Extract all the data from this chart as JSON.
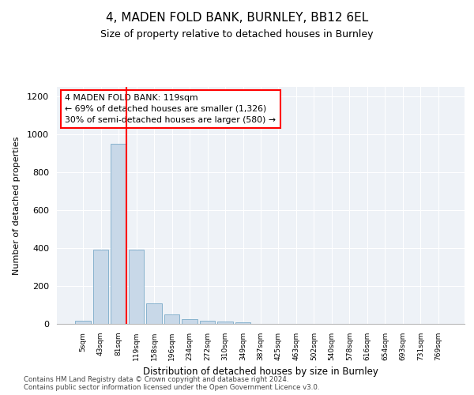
{
  "title": "4, MADEN FOLD BANK, BURNLEY, BB12 6EL",
  "subtitle": "Size of property relative to detached houses in Burnley",
  "xlabel": "Distribution of detached houses by size in Burnley",
  "ylabel": "Number of detached properties",
  "categories": [
    "5sqm",
    "43sqm",
    "81sqm",
    "119sqm",
    "158sqm",
    "196sqm",
    "234sqm",
    "272sqm",
    "310sqm",
    "349sqm",
    "387sqm",
    "425sqm",
    "463sqm",
    "502sqm",
    "540sqm",
    "578sqm",
    "616sqm",
    "654sqm",
    "693sqm",
    "731sqm",
    "769sqm"
  ],
  "values": [
    15,
    393,
    950,
    390,
    110,
    52,
    27,
    15,
    14,
    10,
    0,
    0,
    0,
    0,
    0,
    0,
    0,
    0,
    0,
    0,
    0
  ],
  "bar_color": "#c8d8e8",
  "bar_edge_color": "#7aaac8",
  "red_line_index": 2,
  "annotation_text": "4 MADEN FOLD BANK: 119sqm\n← 69% of detached houses are smaller (1,326)\n30% of semi-detached houses are larger (580) →",
  "annotation_box_color": "white",
  "annotation_box_edge": "red",
  "ylim": [
    0,
    1250
  ],
  "yticks": [
    0,
    200,
    400,
    600,
    800,
    1000,
    1200
  ],
  "background_color": "#eef2f7",
  "footer_line1": "Contains HM Land Registry data © Crown copyright and database right 2024.",
  "footer_line2": "Contains public sector information licensed under the Open Government Licence v3.0."
}
